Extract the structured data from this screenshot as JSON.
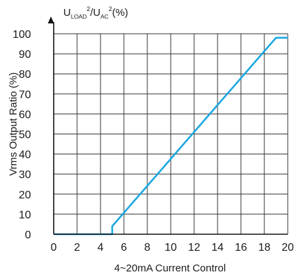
{
  "chart_data": {
    "type": "line",
    "title": {
      "base1": "U",
      "sub1": "LOAD",
      "sup1": "2",
      "sep": "/U",
      "sub2": "AC",
      "sup2": "2",
      "tail": "(%)"
    },
    "xlabel": "4~20mA Current Control",
    "ylabel": "Vrms Output Ratio (%)",
    "xlim": [
      0,
      20
    ],
    "ylim": [
      0,
      100
    ],
    "x_ticks": [
      "0",
      "2",
      "4",
      "6",
      "8",
      "10",
      "12",
      "14",
      "16",
      "18",
      "20"
    ],
    "y_ticks": [
      "0",
      "10",
      "20",
      "30",
      "40",
      "50",
      "60",
      "70",
      "80",
      "90",
      "100"
    ],
    "grid": true,
    "series": [
      {
        "color": "#1aa7e0",
        "x": [
          0,
          5,
          5,
          19,
          20
        ],
        "y": [
          0,
          0,
          4,
          98,
          98
        ]
      }
    ]
  }
}
